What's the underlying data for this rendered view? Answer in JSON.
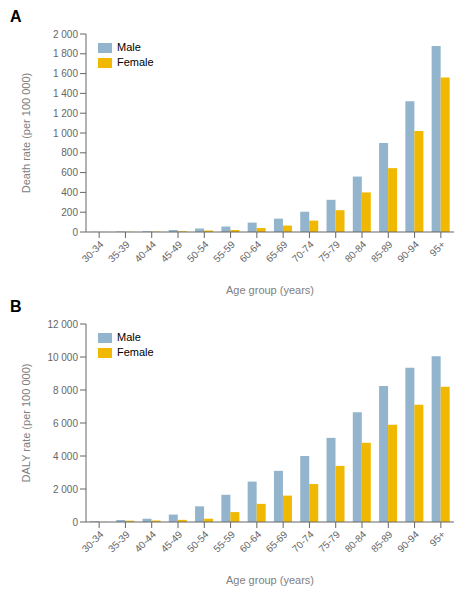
{
  "chart_data": [
    {
      "type": "bar",
      "title": "A",
      "categories": [
        "30-34",
        "35-39",
        "40-44",
        "45-49",
        "50-54",
        "55-59",
        "60-64",
        "65-69",
        "70-74",
        "75-79",
        "80-84",
        "85-89",
        "90-94",
        "95+"
      ],
      "series": [
        {
          "name": "Male",
          "color": "#92b4cc",
          "values": [
            2,
            5,
            8,
            20,
            35,
            55,
            95,
            135,
            205,
            325,
            560,
            900,
            1320,
            1880
          ]
        },
        {
          "name": "Female",
          "color": "#f0b800",
          "values": [
            1,
            2,
            4,
            8,
            15,
            20,
            40,
            65,
            115,
            220,
            400,
            645,
            1020,
            1560
          ]
        }
      ],
      "x_label": "Age group (years)",
      "y_label": "Death rate (per 100 000)",
      "ylim": [
        0,
        2000
      ],
      "yticks": [
        0,
        200,
        400,
        600,
        800,
        {
          "value": 1000,
          "label": "1 000"
        },
        {
          "value": 1200,
          "label": "1 200"
        },
        {
          "value": 1400,
          "label": "1 400"
        },
        {
          "value": 1600,
          "label": "1 600"
        },
        {
          "value": 1800,
          "label": "1 800"
        },
        {
          "value": 2000,
          "label": "2 000"
        }
      ],
      "legend": "upper left",
      "grid": false
    },
    {
      "type": "bar",
      "title": "B",
      "categories": [
        "30-34",
        "35-39",
        "40-44",
        "45-49",
        "50-54",
        "55-59",
        "60-64",
        "65-69",
        "70-74",
        "75-79",
        "80-84",
        "85-89",
        "90-94",
        "95+"
      ],
      "series": [
        {
          "name": "Male",
          "color": "#92b4cc",
          "values": [
            50,
            120,
            200,
            450,
            950,
            1650,
            2450,
            3100,
            4000,
            5100,
            6650,
            8250,
            9350,
            10050
          ]
        },
        {
          "name": "Female",
          "color": "#f0b800",
          "values": [
            10,
            80,
            90,
            130,
            200,
            600,
            1100,
            1600,
            2300,
            3400,
            4800,
            5900,
            7100,
            8200
          ]
        }
      ],
      "x_label": "Age group (years)",
      "y_label": "DALY rate (per 100 000)",
      "ylim": [
        0,
        12000
      ],
      "yticks": [
        0,
        {
          "value": 2000,
          "label": "2 000"
        },
        {
          "value": 4000,
          "label": "4 000"
        },
        {
          "value": 6000,
          "label": "6 000"
        },
        {
          "value": 8000,
          "label": "8 000"
        },
        {
          "value": 10000,
          "label": "10 000"
        },
        {
          "value": 12000,
          "label": "12 000"
        }
      ],
      "legend": "upper left",
      "grid": false
    }
  ]
}
